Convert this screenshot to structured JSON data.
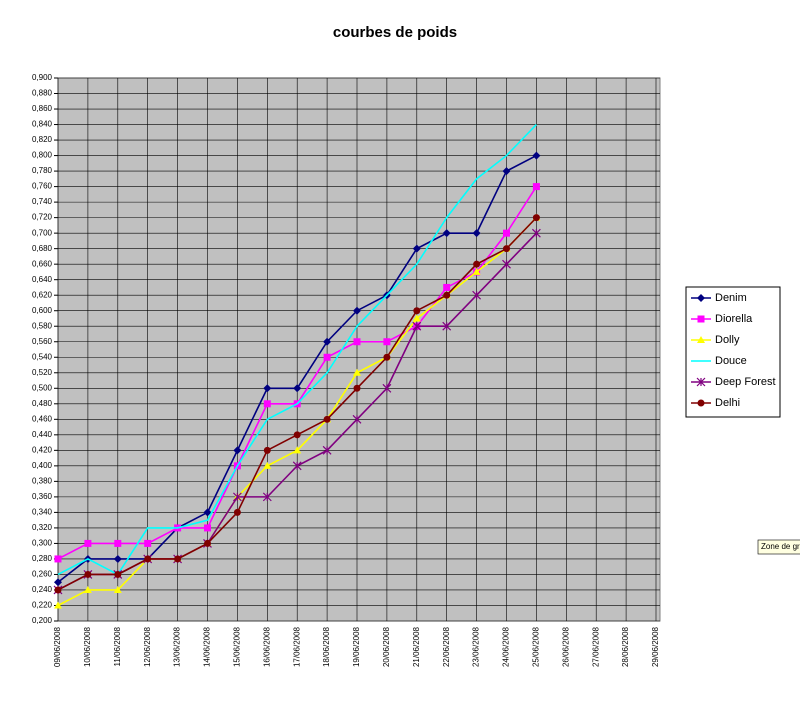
{
  "chart_data": {
    "type": "line",
    "title": "courbes de poids",
    "categories": [
      "09/06/2008",
      "10/06/2008",
      "11/06/2008",
      "12/06/2008",
      "13/06/2008",
      "14/06/2008",
      "15/06/2008",
      "16/06/2008",
      "17/06/2008",
      "18/06/2008",
      "19/06/2008",
      "20/06/2008",
      "21/06/2008",
      "22/06/2008",
      "23/06/2008",
      "24/06/2008",
      "25/06/2008",
      "26/06/2008",
      "27/06/2008",
      "28/06/2008",
      "29/06/2008"
    ],
    "series": [
      {
        "name": "Denim",
        "color": "#000080",
        "marker": "diamond",
        "values": [
          0.25,
          0.28,
          0.28,
          0.28,
          0.32,
          0.34,
          0.42,
          0.5,
          0.5,
          0.56,
          0.6,
          0.62,
          0.68,
          0.7,
          0.7,
          0.78,
          0.8,
          null,
          null,
          null,
          null
        ]
      },
      {
        "name": "Diorella",
        "color": "#ff00ff",
        "marker": "square",
        "values": [
          0.28,
          0.3,
          0.3,
          0.3,
          0.32,
          0.32,
          0.4,
          0.48,
          0.48,
          0.54,
          0.56,
          0.56,
          0.58,
          0.63,
          0.65,
          0.7,
          0.76,
          null,
          null,
          null,
          null
        ]
      },
      {
        "name": "Dolly",
        "color": "#ffff00",
        "marker": "triangle",
        "values": [
          0.22,
          0.24,
          0.24,
          0.28,
          0.28,
          0.3,
          0.36,
          0.4,
          0.42,
          0.46,
          0.52,
          0.54,
          0.59,
          0.62,
          0.65,
          0.68,
          0.72,
          null,
          null,
          null,
          null
        ]
      },
      {
        "name": "Douce",
        "color": "#00ffff",
        "marker": "none",
        "values": [
          0.26,
          0.28,
          0.26,
          0.32,
          0.32,
          0.33,
          0.4,
          0.46,
          0.48,
          0.52,
          0.58,
          0.62,
          0.66,
          0.72,
          0.77,
          0.8,
          0.84,
          null,
          null,
          null,
          null
        ]
      },
      {
        "name": "Deep Forest",
        "color": "#800080",
        "marker": "star",
        "values": [
          0.24,
          0.26,
          0.26,
          0.28,
          0.28,
          0.3,
          0.36,
          0.36,
          0.4,
          0.42,
          0.46,
          0.5,
          0.58,
          0.58,
          0.62,
          0.66,
          0.7,
          null,
          null,
          null,
          null
        ]
      },
      {
        "name": "Delhi",
        "color": "#800000",
        "marker": "circle",
        "values": [
          0.24,
          0.26,
          0.26,
          0.28,
          0.28,
          0.3,
          0.34,
          0.42,
          0.44,
          0.46,
          0.5,
          0.54,
          0.6,
          0.62,
          0.66,
          0.68,
          0.72,
          null,
          null,
          null,
          null
        ]
      }
    ],
    "ylim": [
      0.2,
      0.9
    ],
    "yticks": [
      {
        "value": 0.2,
        "label": "0,200"
      },
      {
        "value": 0.22,
        "label": "0,220"
      },
      {
        "value": 0.24,
        "label": "0,240"
      },
      {
        "value": 0.26,
        "label": "0,260"
      },
      {
        "value": 0.28,
        "label": "0,280"
      },
      {
        "value": 0.3,
        "label": "0,300"
      },
      {
        "value": 0.32,
        "label": "0,320"
      },
      {
        "value": 0.34,
        "label": "0,340"
      },
      {
        "value": 0.36,
        "label": "0,360"
      },
      {
        "value": 0.38,
        "label": "0,380"
      },
      {
        "value": 0.4,
        "label": "0,400"
      },
      {
        "value": 0.42,
        "label": "0,420"
      },
      {
        "value": 0.44,
        "label": "0,440"
      },
      {
        "value": 0.46,
        "label": "0,460"
      },
      {
        "value": 0.48,
        "label": "0,480"
      },
      {
        "value": 0.5,
        "label": "0,500"
      },
      {
        "value": 0.52,
        "label": "0,520"
      },
      {
        "value": 0.54,
        "label": "0,540"
      },
      {
        "value": 0.56,
        "label": "0,560"
      },
      {
        "value": 0.58,
        "label": "0,580"
      },
      {
        "value": 0.6,
        "label": "0,600"
      },
      {
        "value": 0.62,
        "label": "0,620"
      },
      {
        "value": 0.64,
        "label": "0,640"
      },
      {
        "value": 0.66,
        "label": "0,660"
      },
      {
        "value": 0.68,
        "label": "0,680"
      },
      {
        "value": 0.7,
        "label": "0,700"
      },
      {
        "value": 0.72,
        "label": "0,720"
      },
      {
        "value": 0.74,
        "label": "0,740"
      },
      {
        "value": 0.76,
        "label": "0,760"
      },
      {
        "value": 0.78,
        "label": "0,780"
      },
      {
        "value": 0.8,
        "label": "0,800"
      },
      {
        "value": 0.82,
        "label": "0,820"
      },
      {
        "value": 0.84,
        "label": "0,840"
      },
      {
        "value": 0.86,
        "label": "0,860"
      },
      {
        "value": 0.88,
        "label": "0,880"
      },
      {
        "value": 0.9,
        "label": "0,900"
      }
    ],
    "grid": true,
    "legend": "right",
    "tooltip": "Zone de gra"
  }
}
